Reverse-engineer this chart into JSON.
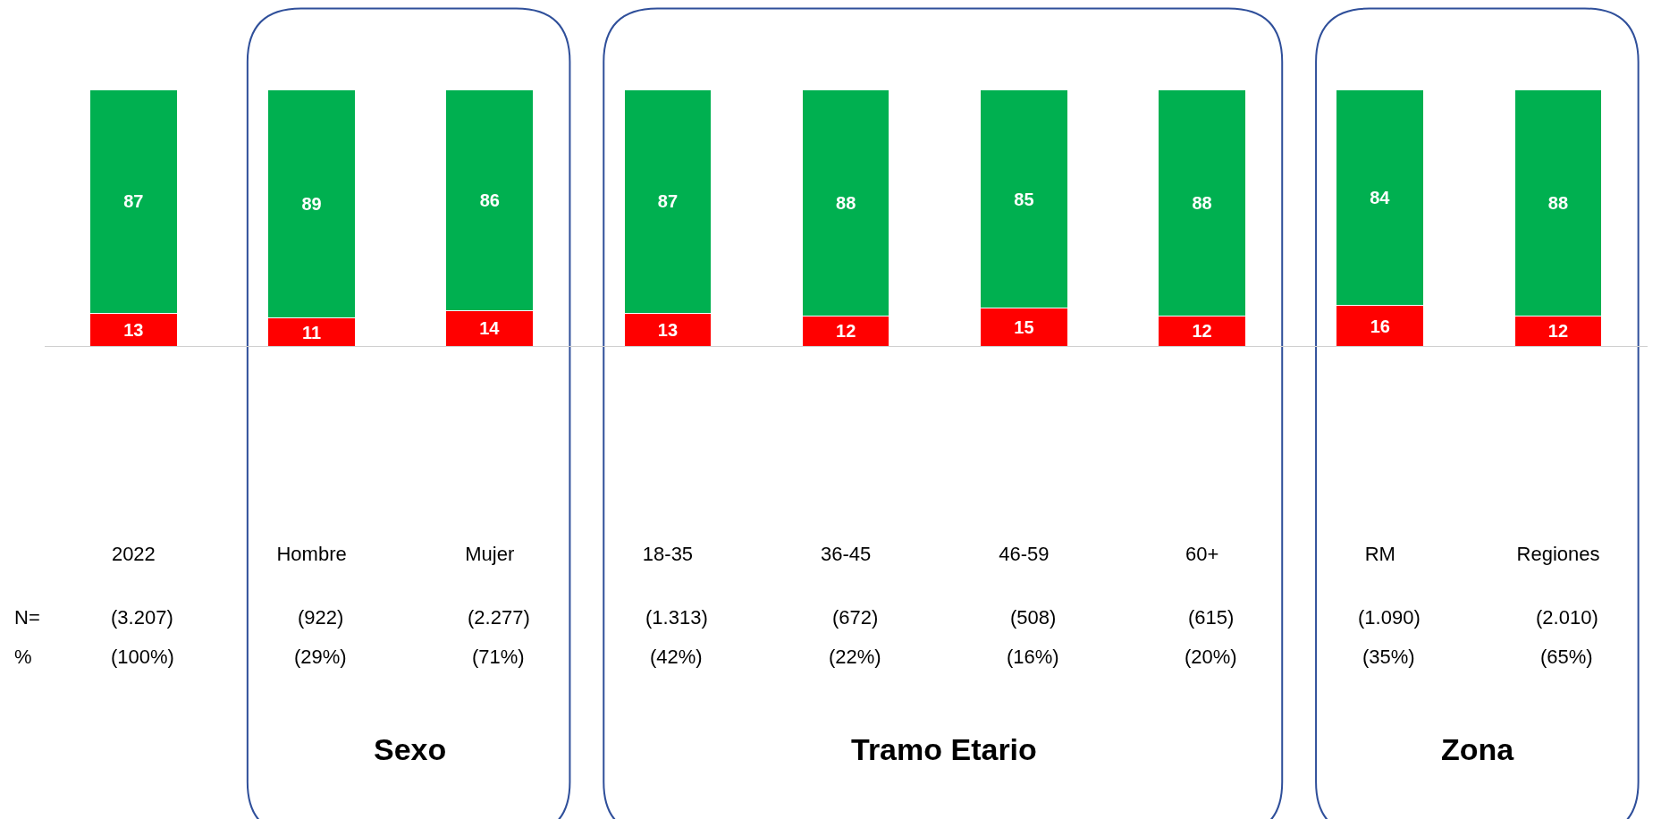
{
  "chart_data": {
    "type": "bar",
    "stacked": true,
    "data_labels": true,
    "tick_labels": "x",
    "grid": false,
    "legend": false,
    "ylim": [
      0,
      100
    ],
    "categories": [
      "2022",
      "Hombre",
      "Mujer",
      "18-35",
      "36-45",
      "46-59",
      "60+",
      "RM",
      "Regiones"
    ],
    "series": [
      {
        "color": "#ff0000",
        "values": [
          13,
          11,
          14,
          13,
          12,
          15,
          12,
          16,
          12
        ]
      },
      {
        "color": "#00b050",
        "values": [
          87,
          89,
          86,
          87,
          88,
          85,
          88,
          84,
          88
        ]
      }
    ],
    "annotations": [
      "N=",
      "%",
      "(3.207)",
      "(922)",
      "(2.277)",
      "(1.313)",
      "(672)",
      "(508)",
      "(615)",
      "(1.090)",
      "(2.010)",
      "(100%)",
      "(29%)",
      "(71%)",
      "(42%)",
      "(22%)",
      "(16%)",
      "(20%)",
      "(35%)",
      "(65%)",
      "Sexo",
      "Tramo Etario",
      "Zona"
    ]
  }
}
